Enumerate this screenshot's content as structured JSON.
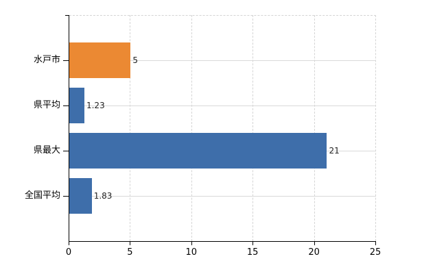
{
  "chart_data": {
    "type": "bar",
    "orientation": "horizontal",
    "title": "",
    "xlabel": "",
    "ylabel": "",
    "categories": [
      "水戸市",
      "県平均",
      "県最大",
      "全国平均"
    ],
    "values": [
      5,
      1.23,
      21,
      1.83
    ],
    "value_labels": [
      "5",
      "1.23",
      "21",
      "1.83"
    ],
    "bar_colors": [
      "#EB8933",
      "#3E6EAA",
      "#3E6EAA",
      "#3E6EAA"
    ],
    "x_ticks": [
      0,
      5,
      10,
      15,
      20,
      25
    ],
    "x_tick_labels": [
      "0",
      "5",
      "10",
      "15",
      "20",
      "25"
    ],
    "xlim": [
      0,
      25
    ],
    "grid": true,
    "legend": false,
    "colors": {
      "highlight_bar": "#EB8933",
      "default_bar": "#3E6EAA",
      "gridline": "#D9D9D9",
      "axis": "#000000",
      "text": "#000000",
      "background": "#FFFFFF"
    }
  }
}
